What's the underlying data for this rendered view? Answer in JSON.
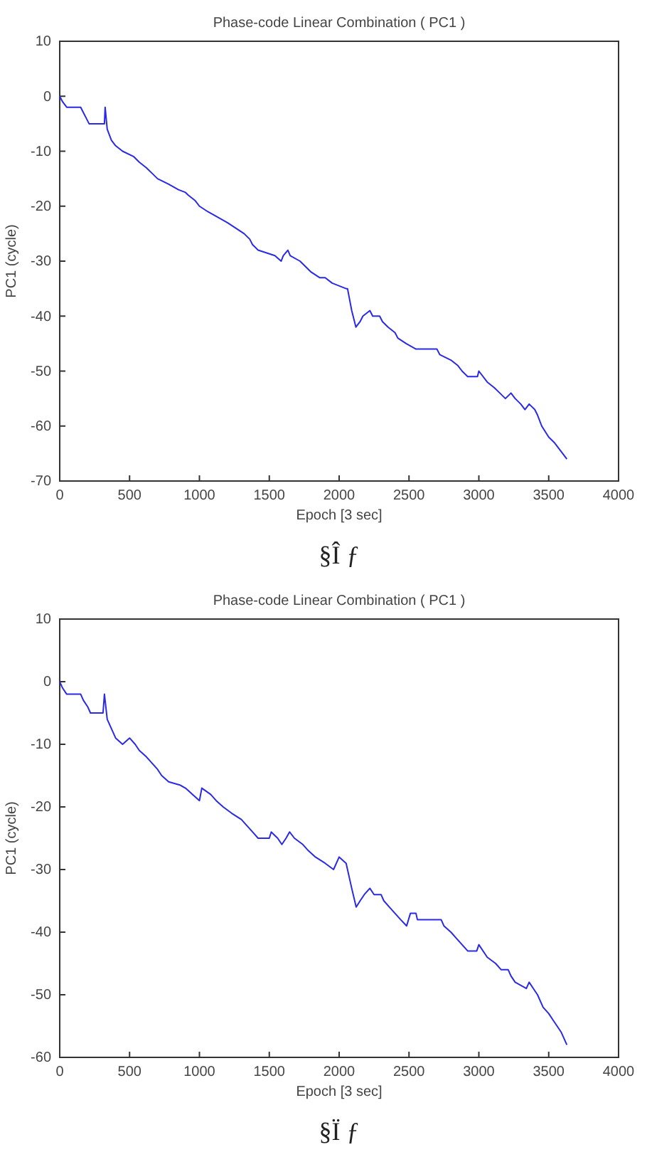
{
  "chart_data": [
    {
      "type": "line",
      "title": "Phase-code Linear Combination ( PC1 )",
      "xlabel": "Epoch [3 sec]",
      "ylabel": "PC1 (cycle)",
      "xlim": [
        0,
        4000
      ],
      "xticks": [
        0,
        500,
        1000,
        1500,
        2000,
        2500,
        3000,
        3500,
        4000
      ],
      "ylim": [
        -70,
        10
      ],
      "yticks": [
        -70,
        -60,
        -50,
        -40,
        -30,
        -20,
        -10,
        0,
        10
      ],
      "grid": false,
      "marker": "none",
      "line_style": "solid",
      "annotations": [
        "§Î ƒ"
      ],
      "series": [
        {
          "color": "#2a2ae6",
          "x": [
            0,
            20,
            50,
            150,
            170,
            190,
            210,
            320,
            325,
            340,
            370,
            400,
            450,
            530,
            570,
            620,
            660,
            700,
            780,
            850,
            900,
            920,
            970,
            1000,
            1060,
            1130,
            1200,
            1260,
            1320,
            1360,
            1380,
            1420,
            1540,
            1585,
            1600,
            1633,
            1650,
            1720,
            1760,
            1800,
            1860,
            1900,
            1950,
            2050,
            2060,
            2090,
            2120,
            2150,
            2170,
            2220,
            2240,
            2290,
            2310,
            2350,
            2400,
            2420,
            2480,
            2550,
            2700,
            2720,
            2800,
            2850,
            2880,
            2920,
            2990,
            3000,
            3060,
            3110,
            3150,
            3190,
            3230,
            3260,
            3300,
            3330,
            3360,
            3400,
            3420,
            3450,
            3500,
            3540,
            3570,
            3600,
            3630
          ],
          "values": [
            0,
            -1,
            -2,
            -2,
            -3,
            -4,
            -5,
            -5,
            -2,
            -6,
            -8,
            -9,
            -10,
            -11,
            -12,
            -13,
            -14,
            -15,
            -16,
            -17,
            -17.5,
            -18,
            -19,
            -20,
            -21,
            -22,
            -23,
            -24,
            -25,
            -26,
            -27,
            -28,
            -29,
            -30,
            -29,
            -28,
            -29,
            -30,
            -31,
            -32,
            -33,
            -33,
            -34,
            -35,
            -35,
            -39,
            -42,
            -41,
            -40,
            -39,
            -40,
            -40,
            -41,
            -42,
            -43,
            -44,
            -45,
            -46,
            -46,
            -47,
            -48,
            -49,
            -50,
            -51,
            -51,
            -50,
            -52,
            -53,
            -54,
            -55,
            -54,
            -55,
            -56,
            -57,
            -56,
            -57,
            -58,
            -60,
            -62,
            -63,
            -64,
            -65,
            -66
          ]
        }
      ]
    },
    {
      "type": "line",
      "title": "Phase-code Linear Combination ( PC1 )",
      "xlabel": "Epoch [3 sec]",
      "ylabel": "PC1 (cycle)",
      "xlim": [
        0,
        4000
      ],
      "xticks": [
        0,
        500,
        1000,
        1500,
        2000,
        2500,
        3000,
        3500,
        4000
      ],
      "ylim": [
        -60,
        10
      ],
      "yticks": [
        -60,
        -50,
        -40,
        -30,
        -20,
        -10,
        0,
        10
      ],
      "grid": false,
      "marker": "none",
      "line_style": "solid",
      "annotations": [
        "§Ï ƒ"
      ],
      "series": [
        {
          "color": "#2a2ae6",
          "x": [
            0,
            20,
            50,
            150,
            170,
            200,
            220,
            310,
            320,
            340,
            360,
            380,
            400,
            450,
            500,
            540,
            570,
            620,
            660,
            700,
            730,
            780,
            860,
            900,
            1000,
            1017,
            1080,
            1120,
            1170,
            1230,
            1300,
            1340,
            1380,
            1420,
            1500,
            1514,
            1560,
            1590,
            1620,
            1645,
            1680,
            1740,
            1780,
            1830,
            1900,
            1960,
            2000,
            2050,
            2090,
            2122,
            2150,
            2180,
            2220,
            2250,
            2300,
            2320,
            2360,
            2400,
            2440,
            2483,
            2510,
            2550,
            2560,
            2730,
            2750,
            2800,
            2840,
            2880,
            2920,
            2985,
            3000,
            3060,
            3120,
            3160,
            3210,
            3230,
            3260,
            3340,
            3360,
            3390,
            3420,
            3460,
            3500,
            3530,
            3560,
            3590,
            3630
          ],
          "values": [
            0,
            -1,
            -2,
            -2,
            -3,
            -4,
            -5,
            -5,
            -2,
            -6,
            -7,
            -8,
            -9,
            -10,
            -9,
            -10,
            -11,
            -12,
            -13,
            -14,
            -15,
            -16,
            -16.5,
            -17,
            -19,
            -17,
            -18,
            -19,
            -20,
            -21,
            -22,
            -23,
            -24,
            -25,
            -25,
            -24,
            -25,
            -26,
            -25,
            -24,
            -25,
            -26,
            -27,
            -28,
            -29,
            -30,
            -28,
            -29,
            -33,
            -36,
            -35,
            -34,
            -33,
            -34,
            -34,
            -35,
            -36,
            -37,
            -38,
            -39,
            -37,
            -37,
            -38,
            -38,
            -39,
            -40,
            -41,
            -42,
            -43,
            -43,
            -42,
            -44,
            -45,
            -46,
            -46,
            -47,
            -48,
            -49,
            -48,
            -49,
            -50,
            -52,
            -53,
            -54,
            -55,
            -56,
            -58
          ]
        }
      ]
    }
  ]
}
